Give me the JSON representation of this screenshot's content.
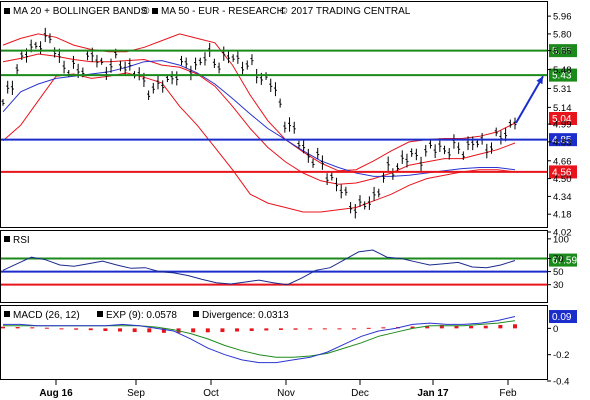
{
  "legend": {
    "price": [
      {
        "label": "MA 20 + BOLLINGER BANDS",
        "color": "#e8141c",
        "symbol": "®"
      },
      {
        "label": "MA 50 - EUR - RESEARCH",
        "color": "#2a35d0",
        "symbol": "©"
      },
      {
        "label": "2017 TRADING CENTRAL",
        "color": "",
        "symbol": ""
      }
    ],
    "rsi": {
      "label": "RSI",
      "color": "#1a2a8c"
    },
    "macd": [
      {
        "label": "MACD (26, 12)",
        "color": "#2a35d0"
      },
      {
        "label": "EXP (9): 0.0578",
        "color": "#1f8a1f"
      },
      {
        "label": "Divergence: 0.0313",
        "color": "#e8141c"
      }
    ]
  },
  "colors": {
    "resistance": "#1a8a1a",
    "pivot": "#1b2ecc",
    "support": "#e8141c",
    "bollinger": "#e8141c",
    "ma50": "#2a35d0",
    "price_bar": "#000000",
    "arrow": "#1b2ecc"
  },
  "chart_data": [
    {
      "type": "line",
      "panel": "price",
      "x_ticks": [
        "Aug 16",
        "Sep",
        "Oct",
        "Nov",
        "Dec",
        "Jan 17",
        "Feb"
      ],
      "bold_ticks": [
        "Aug 16",
        "Jan 17"
      ],
      "ylim": [
        4.02,
        6.06
      ],
      "y_ticks": [
        5.96,
        5.8,
        5.65,
        5.48,
        5.31,
        5.14,
        4.99,
        4.83,
        4.66,
        4.5,
        4.34,
        4.18,
        4.02
      ],
      "levels": [
        {
          "value": 5.65,
          "label": "5.65",
          "role": "resistance"
        },
        {
          "value": 5.43,
          "label": "5.43",
          "role": "resistance"
        },
        {
          "value": 4.85,
          "label": "4.85",
          "role": "pivot"
        },
        {
          "value": 4.56,
          "label": "4.56",
          "role": "support"
        }
      ],
      "last_price": {
        "value": 5.04,
        "label": "5.04"
      },
      "target_arrow": {
        "from": 5.0,
        "to": 5.42
      },
      "series": [
        {
          "name": "MA 20 + BOLLINGER BANDS",
          "role": "ma20",
          "values": [
            5.55,
            5.58,
            5.62,
            5.6,
            5.57,
            5.55,
            5.55,
            5.56,
            5.57,
            5.52,
            5.5,
            5.44,
            5.33,
            5.15,
            4.95,
            4.78,
            4.65,
            4.55,
            4.48,
            4.45,
            4.46,
            4.5,
            4.55,
            4.62,
            4.65,
            4.68,
            4.68,
            4.72,
            4.76,
            4.82
          ]
        },
        {
          "name": "Bollinger upper",
          "role": "upper",
          "values": [
            5.7,
            5.76,
            5.8,
            5.77,
            5.7,
            5.66,
            5.64,
            5.64,
            5.68,
            5.74,
            5.8,
            5.76,
            5.72,
            5.52,
            5.25,
            5.02,
            4.85,
            4.74,
            4.64,
            4.57,
            4.58,
            4.66,
            4.75,
            4.83,
            4.85,
            4.86,
            4.86,
            4.88,
            4.92,
            5.0
          ]
        },
        {
          "name": "Bollinger lower",
          "role": "lower",
          "values": [
            4.84,
            4.98,
            5.2,
            5.42,
            5.44,
            5.4,
            5.42,
            5.45,
            5.41,
            5.36,
            5.15,
            4.98,
            4.78,
            4.58,
            4.36,
            4.28,
            4.24,
            4.2,
            4.2,
            4.22,
            4.24,
            4.3,
            4.36,
            4.44,
            4.5,
            4.53,
            4.56,
            4.58,
            4.58,
            4.56
          ]
        },
        {
          "name": "MA 50 - EUR - RESEARCH",
          "role": "ma50",
          "values": [
            5.1,
            5.28,
            5.35,
            5.4,
            5.42,
            5.44,
            5.46,
            5.5,
            5.55,
            5.56,
            5.52,
            5.45,
            5.35,
            5.22,
            5.08,
            4.95,
            4.85,
            4.75,
            4.66,
            4.6,
            4.55,
            4.52,
            4.52,
            4.53,
            4.55,
            4.57,
            4.59,
            4.6,
            4.6,
            4.58
          ]
        },
        {
          "name": "Price",
          "role": "close",
          "values": [
            5.15,
            5.48,
            5.65,
            5.75,
            5.7,
            5.45,
            5.5,
            5.6,
            5.5,
            5.55,
            5.5,
            5.35,
            5.3,
            5.4,
            5.5,
            5.52,
            5.6,
            5.55,
            5.6,
            5.52,
            5.45,
            5.35,
            5.05,
            4.85,
            4.7,
            4.62,
            4.45,
            4.3,
            4.22,
            4.35,
            4.55,
            4.65,
            4.7,
            4.72,
            4.8,
            4.75,
            4.78,
            4.82,
            4.8,
            4.88,
            5.04
          ]
        }
      ]
    },
    {
      "type": "line",
      "panel": "rsi",
      "ylim": [
        2,
        112
      ],
      "y_ticks": [
        100,
        70,
        50,
        30
      ],
      "levels": [
        {
          "value": 70,
          "label": "70",
          "role": "overbought"
        },
        {
          "value": 50,
          "label": "50",
          "role": "mid"
        },
        {
          "value": 30,
          "label": "30",
          "role": "oversold"
        }
      ],
      "current": {
        "value": 67.59,
        "label": "67.59"
      },
      "series": [
        {
          "name": "RSI",
          "values": [
            52,
            62,
            72,
            68,
            60,
            58,
            62,
            66,
            60,
            55,
            56,
            50,
            48,
            44,
            38,
            33,
            31,
            34,
            37,
            33,
            30,
            40,
            52,
            56,
            68,
            80,
            83,
            72,
            70,
            65,
            60,
            62,
            64,
            57,
            56,
            60,
            67
          ]
        }
      ]
    },
    {
      "type": "bar",
      "panel": "macd",
      "ylim": [
        -0.4,
        0.17
      ],
      "y_ticks": [
        0.0,
        -0.2,
        -0.4
      ],
      "current": {
        "value": 0.09,
        "label": "0.09"
      },
      "series": [
        {
          "name": "MACD (26, 12)",
          "role": "macd",
          "values": [
            0.03,
            0.03,
            0.02,
            0.02,
            0.02,
            0.02,
            0.02,
            0.03,
            0.02,
            0.0,
            -0.02,
            -0.08,
            -0.15,
            -0.2,
            -0.24,
            -0.26,
            -0.26,
            -0.24,
            -0.22,
            -0.18,
            -0.12,
            -0.06,
            -0.02,
            0.0,
            0.03,
            0.04,
            0.03,
            0.03,
            0.04,
            0.06,
            0.09
          ]
        },
        {
          "name": "EXP (9): 0.0578",
          "role": "signal",
          "values": [
            0.02,
            0.02,
            0.02,
            0.02,
            0.02,
            0.02,
            0.02,
            0.02,
            0.02,
            0.01,
            -0.01,
            -0.04,
            -0.08,
            -0.13,
            -0.17,
            -0.2,
            -0.22,
            -0.22,
            -0.21,
            -0.19,
            -0.15,
            -0.11,
            -0.06,
            -0.03,
            0.0,
            0.02,
            0.02,
            0.02,
            0.03,
            0.04,
            0.058
          ]
        },
        {
          "name": "Divergence: 0.0313",
          "role": "histogram",
          "values": [
            0.012,
            0.01,
            0.008,
            0.005,
            -0.005,
            -0.01,
            -0.014,
            -0.02,
            -0.024,
            -0.028,
            -0.03,
            -0.034,
            -0.034,
            -0.03,
            -0.03,
            -0.028,
            -0.024,
            -0.02,
            -0.016,
            -0.012,
            -0.01,
            -0.008,
            -0.006,
            -0.004,
            0.0,
            0.004,
            0.008,
            0.01,
            0.014,
            0.02,
            0.026,
            0.022,
            0.018,
            0.02,
            0.026,
            0.031
          ]
        }
      ]
    }
  ]
}
